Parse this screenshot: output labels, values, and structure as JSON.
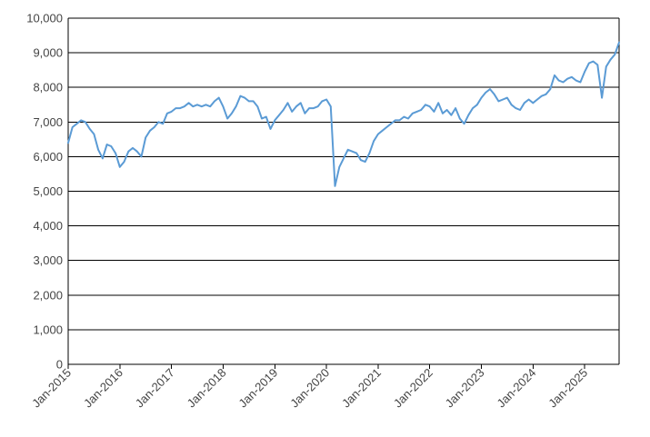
{
  "chart_data": {
    "type": "line",
    "title": "",
    "xlabel": "",
    "ylabel": "",
    "x_range": [
      "2015-01",
      "2025-09"
    ],
    "ylim": [
      0,
      10000
    ],
    "y_ticks": [
      "0",
      "1,000",
      "2,000",
      "3,000",
      "4,000",
      "5,000",
      "6,000",
      "7,000",
      "8,000",
      "9,000",
      "10,000"
    ],
    "x_ticks": [
      "Jan-2015",
      "Jan-2016",
      "Jan-2017",
      "Jan-2018",
      "Jan-2019",
      "Jan-2020",
      "Jan-2021",
      "Jan-2022",
      "Jan-2023",
      "Jan-2024",
      "Jan-2025"
    ],
    "grid": "horizontal",
    "legend": "none",
    "line_color": "#5b9bd5",
    "grid_color": "#000000",
    "series": [
      {
        "x": [
          "2015-01",
          "2015-02",
          "2015-03",
          "2015-04",
          "2015-05",
          "2015-06",
          "2015-07",
          "2015-08",
          "2015-09",
          "2015-10",
          "2015-11",
          "2015-12",
          "2016-01",
          "2016-02",
          "2016-03",
          "2016-04",
          "2016-05",
          "2016-06",
          "2016-07",
          "2016-08",
          "2016-09",
          "2016-10",
          "2016-11",
          "2016-12",
          "2017-01",
          "2017-02",
          "2017-03",
          "2017-04",
          "2017-05",
          "2017-06",
          "2017-07",
          "2017-08",
          "2017-09",
          "2017-10",
          "2017-11",
          "2017-12",
          "2018-01",
          "2018-02",
          "2018-03",
          "2018-04",
          "2018-05",
          "2018-06",
          "2018-07",
          "2018-08",
          "2018-09",
          "2018-10",
          "2018-11",
          "2018-12",
          "2019-01",
          "2019-02",
          "2019-03",
          "2019-04",
          "2019-05",
          "2019-06",
          "2019-07",
          "2019-08",
          "2019-09",
          "2019-10",
          "2019-11",
          "2019-12",
          "2020-01",
          "2020-02",
          "2020-03",
          "2020-04",
          "2020-05",
          "2020-06",
          "2020-07",
          "2020-08",
          "2020-09",
          "2020-10",
          "2020-11",
          "2020-12",
          "2021-01",
          "2021-02",
          "2021-03",
          "2021-04",
          "2021-05",
          "2021-06",
          "2021-07",
          "2021-08",
          "2021-09",
          "2021-10",
          "2021-11",
          "2021-12",
          "2022-01",
          "2022-02",
          "2022-03",
          "2022-04",
          "2022-05",
          "2022-06",
          "2022-07",
          "2022-08",
          "2022-09",
          "2022-10",
          "2022-11",
          "2022-12",
          "2023-01",
          "2023-02",
          "2023-03",
          "2023-04",
          "2023-05",
          "2023-06",
          "2023-07",
          "2023-08",
          "2023-09",
          "2023-10",
          "2023-11",
          "2023-12",
          "2024-01",
          "2024-02",
          "2024-03",
          "2024-04",
          "2024-05",
          "2024-06",
          "2024-07",
          "2024-08",
          "2024-09",
          "2024-10",
          "2024-11",
          "2024-12",
          "2025-01",
          "2025-02",
          "2025-03",
          "2025-04",
          "2025-05",
          "2025-06",
          "2025-07",
          "2025-08",
          "2025-09"
        ],
        "values": [
          6400,
          6850,
          6950,
          7050,
          7000,
          6800,
          6650,
          6200,
          5950,
          6350,
          6300,
          6100,
          5700,
          5850,
          6150,
          6250,
          6150,
          6000,
          6550,
          6750,
          6850,
          7000,
          6950,
          7250,
          7300,
          7400,
          7400,
          7450,
          7550,
          7450,
          7500,
          7450,
          7500,
          7450,
          7600,
          7700,
          7450,
          7100,
          7250,
          7450,
          7750,
          7700,
          7600,
          7600,
          7450,
          7100,
          7150,
          6800,
          7050,
          7200,
          7350,
          7550,
          7300,
          7450,
          7550,
          7250,
          7400,
          7400,
          7450,
          7600,
          7650,
          7450,
          5150,
          5700,
          5950,
          6200,
          6150,
          6100,
          5900,
          5850,
          6100,
          6450,
          6650,
          6750,
          6850,
          6950,
          7050,
          7050,
          7150,
          7100,
          7250,
          7300,
          7350,
          7500,
          7450,
          7300,
          7550,
          7250,
          7350,
          7200,
          7400,
          7100,
          6950,
          7200,
          7400,
          7500,
          7700,
          7850,
          7950,
          7800,
          7600,
          7650,
          7700,
          7500,
          7400,
          7350,
          7550,
          7650,
          7550,
          7650,
          7750,
          7800,
          7950,
          8350,
          8200,
          8150,
          8250,
          8300,
          8200,
          8150,
          8450,
          8700,
          8750,
          8650,
          7700,
          8600,
          8800,
          8950,
          9300
        ]
      }
    ]
  }
}
